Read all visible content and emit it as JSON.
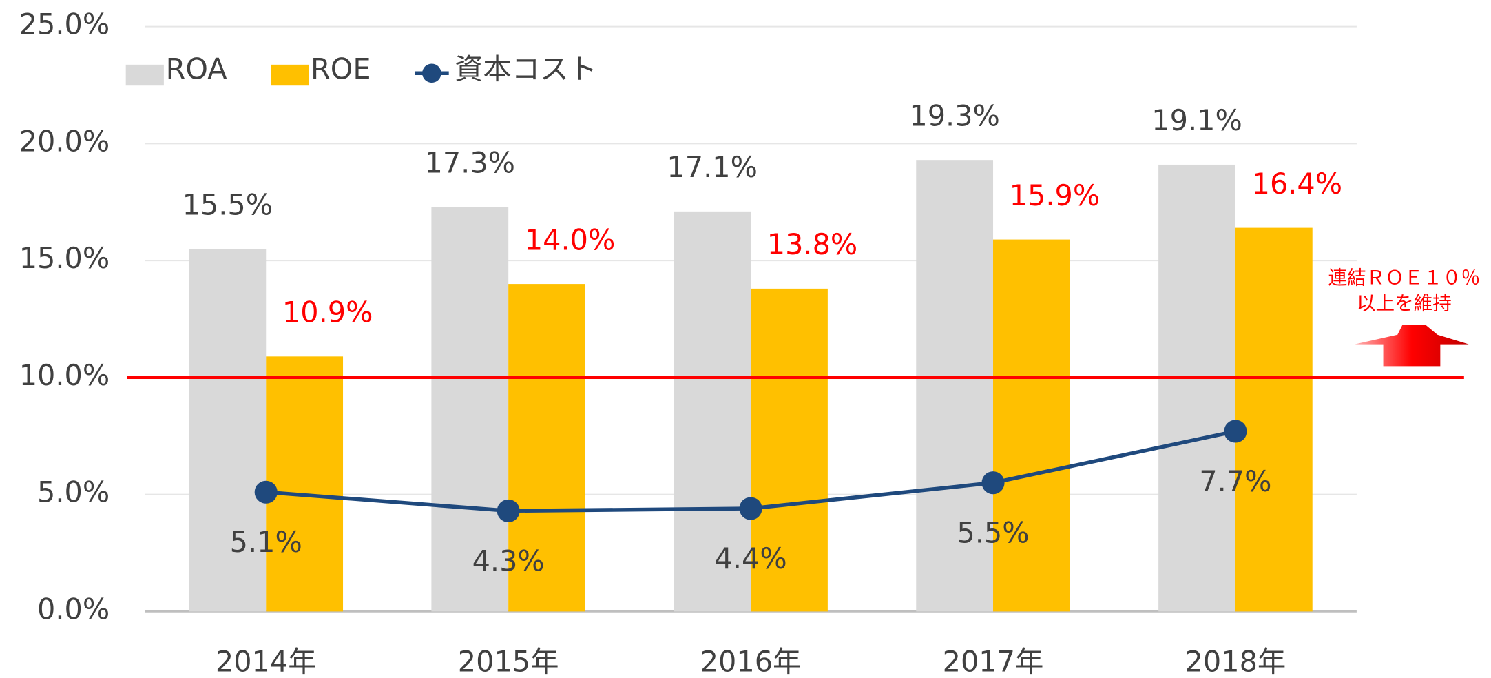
{
  "chart_data": {
    "type": "bar",
    "categories": [
      "2014年",
      "2015年",
      "2016年",
      "2017年",
      "2018年"
    ],
    "series": [
      {
        "name": "ROA",
        "color": "#d9d9d9",
        "values": [
          15.5,
          17.3,
          17.1,
          19.3,
          19.1
        ],
        "value_labels": [
          "15.5%",
          "17.3%",
          "17.1%",
          "19.3%",
          "19.1%"
        ],
        "label_color": "#404040"
      },
      {
        "name": "ROE",
        "color": "#ffc000",
        "values": [
          10.9,
          14.0,
          13.8,
          15.9,
          16.4
        ],
        "value_labels": [
          "10.9%",
          "14.0%",
          "13.8%",
          "15.9%",
          "16.4%"
        ],
        "label_color": "#ff0000"
      },
      {
        "name": "資本コスト",
        "type": "line",
        "color": "#1f497d",
        "values": [
          5.1,
          4.3,
          4.4,
          5.5,
          7.7
        ],
        "value_labels": [
          "5.1%",
          "4.3%",
          "4.4%",
          "5.5%",
          "7.7%"
        ],
        "label_color": "#404040"
      }
    ],
    "ylim": [
      0,
      25
    ],
    "yticks": [
      {
        "value": 0,
        "label": "0.0%"
      },
      {
        "value": 5,
        "label": "5.0%"
      },
      {
        "value": 10,
        "label": "10.0%"
      },
      {
        "value": 15,
        "label": "15.0%"
      },
      {
        "value": 20,
        "label": "20.0%"
      },
      {
        "value": 25,
        "label": "25.0%"
      }
    ],
    "grid": true,
    "legend": "top-left",
    "reference_line": {
      "value": 10,
      "color": "#ff0000"
    },
    "annotation": [
      "連結ＲＯＥ１０％",
      "以上を維持"
    ]
  }
}
